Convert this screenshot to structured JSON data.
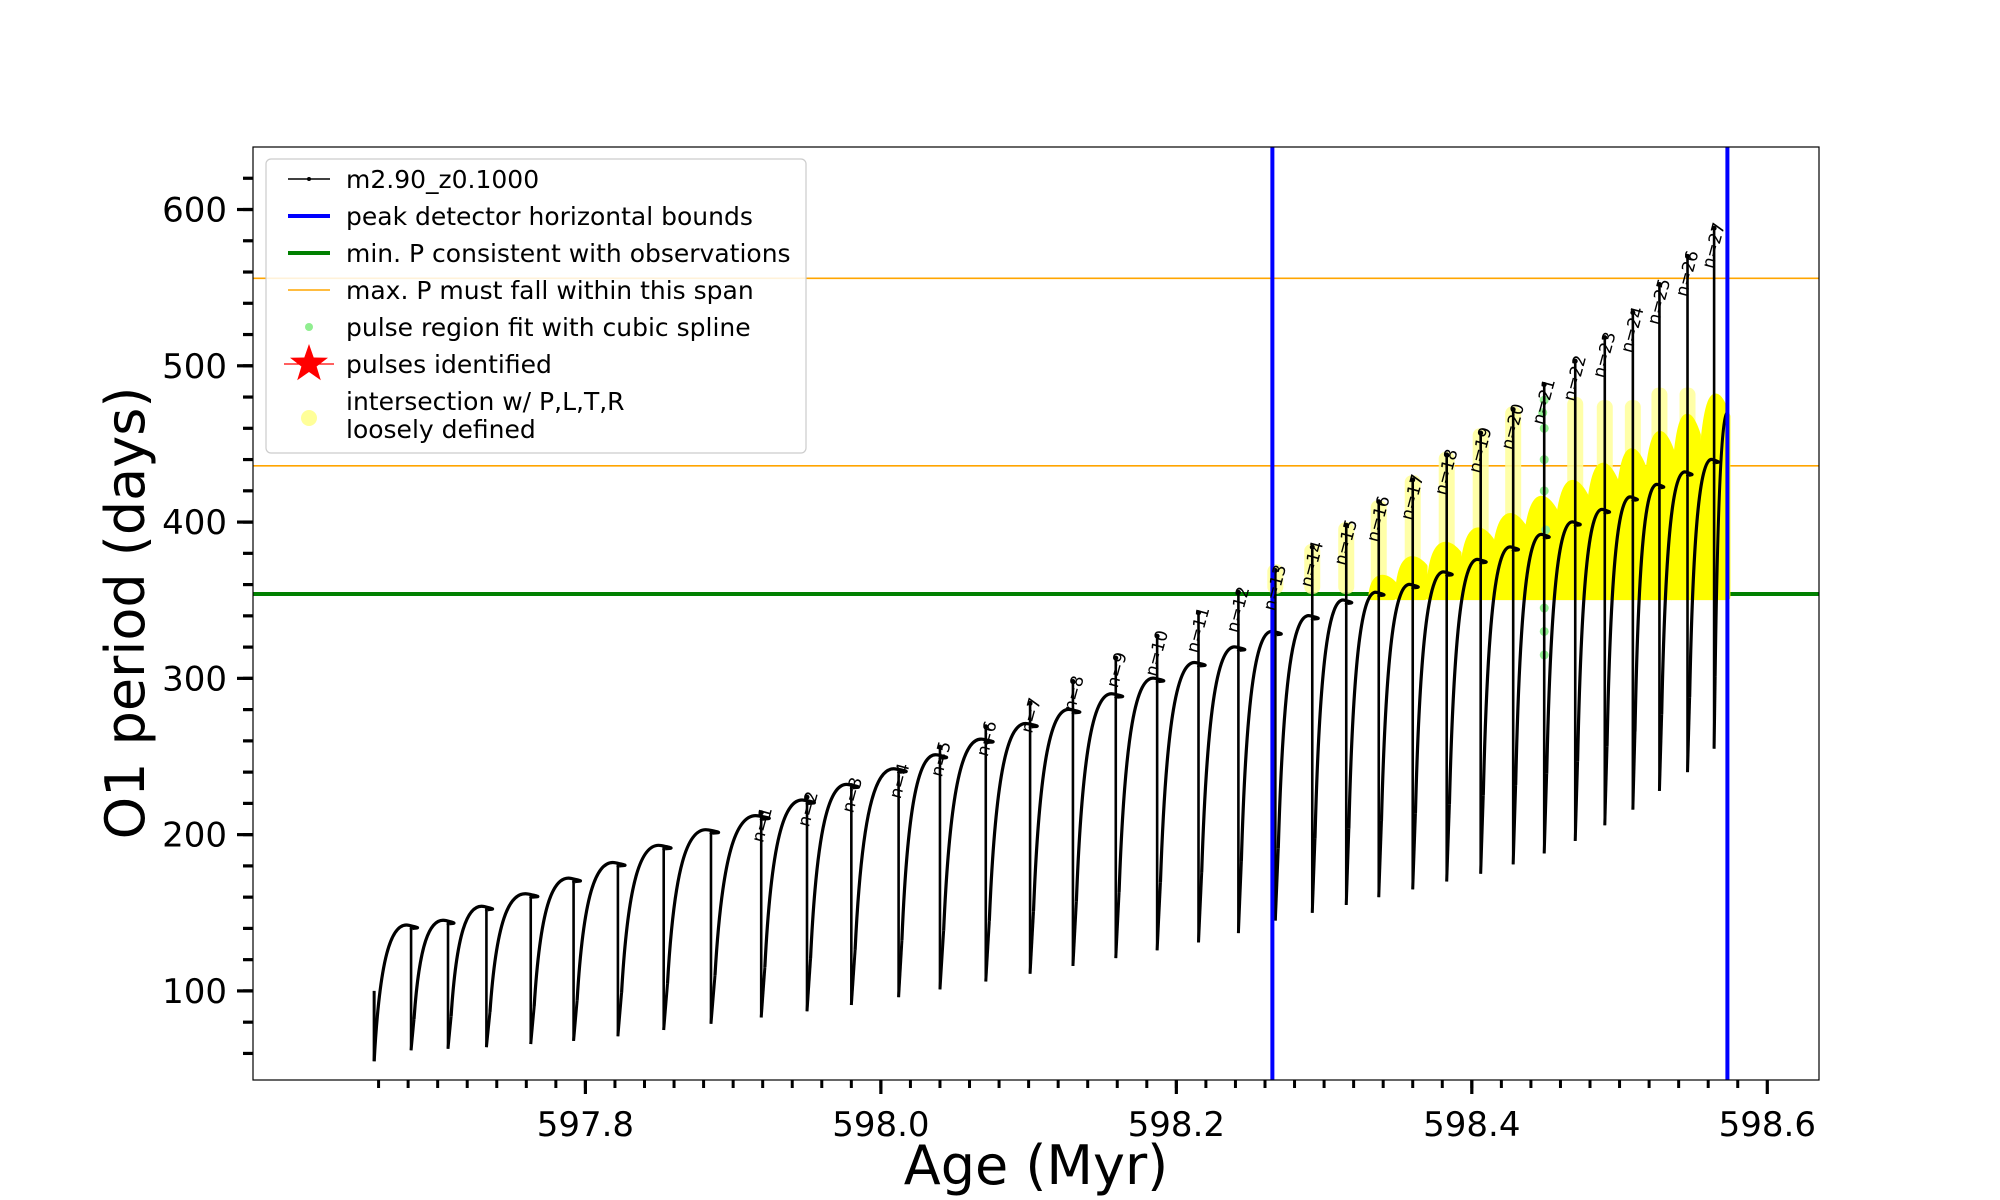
{
  "chart_data": {
    "type": "line",
    "xlabel": "Age (Myr)",
    "ylabel": "O1 period (days)",
    "xlim": [
      597.575,
      598.635
    ],
    "ylim": [
      43,
      640
    ],
    "x_ticks": [
      597.8,
      598.0,
      598.2,
      598.4,
      598.6
    ],
    "x_tick_labels": [
      "597.8",
      "598.0",
      "598.2",
      "598.4",
      "598.6"
    ],
    "x_minor_step": 0.02,
    "y_ticks": [
      100,
      200,
      300,
      400,
      500,
      600
    ],
    "y_tick_labels": [
      "100",
      "200",
      "300",
      "400",
      "500",
      "600"
    ],
    "y_minor_step": 20,
    "legend_position": "upper left",
    "legend": [
      {
        "label": "m2.90_z0.1000",
        "marker": "line-dot",
        "color": "#000000"
      },
      {
        "label": "peak detector horizontal bounds",
        "marker": "line",
        "color": "#0000ff"
      },
      {
        "label": "min. P consistent with observations",
        "marker": "line",
        "color": "#008000"
      },
      {
        "label": "max. P must fall within this span",
        "marker": "thin-line",
        "color": "#ffa500"
      },
      {
        "label": "pulse region fit with cubic spline",
        "marker": "dot",
        "color": "#90ee90"
      },
      {
        "label": "pulses identified",
        "marker": "star",
        "color": "#ff0000"
      },
      {
        "label": "intersection w/ P,L,T,R",
        "label_line2": "loosely defined",
        "marker": "circle",
        "color": "#ffff99"
      }
    ],
    "vertical_lines": [
      {
        "x": 598.265,
        "color": "#0000ff"
      },
      {
        "x": 598.573,
        "color": "#0000ff"
      }
    ],
    "horizontal_lines": [
      {
        "y": 354,
        "color": "#008000"
      },
      {
        "y": 436,
        "color": "#ffa500"
      },
      {
        "y": 556,
        "color": "#ffa500"
      }
    ],
    "series": [
      {
        "name": "m2.90_z0.1000",
        "color": "#000000",
        "style": "sawtooth-pulses",
        "start": {
          "x": 597.657,
          "y": 100,
          "dip": 55
        },
        "pulses": [
          {
            "x": 597.682,
            "peak": 142,
            "spike": 142,
            "min": 62,
            "label": ""
          },
          {
            "x": 597.707,
            "peak": 145,
            "spike": 145,
            "min": 63,
            "label": ""
          },
          {
            "x": 597.733,
            "peak": 154,
            "spike": 154,
            "min": 64,
            "label": ""
          },
          {
            "x": 597.763,
            "peak": 162,
            "spike": 162,
            "min": 66,
            "label": ""
          },
          {
            "x": 597.792,
            "peak": 172,
            "spike": 172,
            "min": 68,
            "label": ""
          },
          {
            "x": 597.822,
            "peak": 182,
            "spike": 182,
            "min": 71,
            "label": ""
          },
          {
            "x": 597.853,
            "peak": 193,
            "spike": 193,
            "min": 75,
            "label": ""
          },
          {
            "x": 597.885,
            "peak": 203,
            "spike": 203,
            "min": 79,
            "label": ""
          },
          {
            "x": 597.919,
            "peak": 212,
            "spike": 214,
            "min": 83,
            "label": "n=1"
          },
          {
            "x": 597.95,
            "peak": 222,
            "spike": 224,
            "min": 87,
            "label": "n=2"
          },
          {
            "x": 597.98,
            "peak": 232,
            "spike": 233,
            "min": 91,
            "label": "n=3"
          },
          {
            "x": 598.012,
            "peak": 242,
            "spike": 242,
            "min": 96,
            "label": "n=4"
          },
          {
            "x": 598.04,
            "peak": 251,
            "spike": 256,
            "min": 101,
            "label": "n=5"
          },
          {
            "x": 598.071,
            "peak": 261,
            "spike": 269,
            "min": 106,
            "label": "n=6"
          },
          {
            "x": 598.101,
            "peak": 271,
            "spike": 284,
            "min": 111,
            "label": "n=7"
          },
          {
            "x": 598.13,
            "peak": 280,
            "spike": 298,
            "min": 116,
            "label": "n=8"
          },
          {
            "x": 598.159,
            "peak": 290,
            "spike": 313,
            "min": 121,
            "label": "n=9"
          },
          {
            "x": 598.187,
            "peak": 300,
            "spike": 327,
            "min": 126,
            "label": "n=10"
          },
          {
            "x": 598.215,
            "peak": 310,
            "spike": 342,
            "min": 131,
            "label": "n=11"
          },
          {
            "x": 598.242,
            "peak": 320,
            "spike": 355,
            "min": 137,
            "label": "n=12"
          },
          {
            "x": 598.267,
            "peak": 330,
            "spike": 369,
            "min": 145,
            "label": "n=13"
          },
          {
            "x": 598.292,
            "peak": 340,
            "spike": 384,
            "min": 150,
            "label": "n=14"
          },
          {
            "x": 598.315,
            "peak": 350,
            "spike": 398,
            "min": 155,
            "label": "n=15"
          },
          {
            "x": 598.337,
            "peak": 355,
            "spike": 413,
            "min": 160,
            "label": "n=16"
          },
          {
            "x": 598.36,
            "peak": 360,
            "spike": 427,
            "min": 165,
            "label": "n=17"
          },
          {
            "x": 598.383,
            "peak": 368,
            "spike": 443,
            "min": 170,
            "label": "n=18"
          },
          {
            "x": 598.406,
            "peak": 376,
            "spike": 457,
            "min": 175,
            "label": "n=19"
          },
          {
            "x": 598.428,
            "peak": 384,
            "spike": 472,
            "min": 181,
            "label": "n=20"
          },
          {
            "x": 598.449,
            "peak": 392,
            "spike": 488,
            "min": 188,
            "label": "n=21"
          },
          {
            "x": 598.47,
            "peak": 400,
            "spike": 503,
            "min": 196,
            "label": "n=22"
          },
          {
            "x": 598.49,
            "peak": 408,
            "spike": 518,
            "min": 206,
            "label": "n=23"
          },
          {
            "x": 598.509,
            "peak": 416,
            "spike": 534,
            "min": 216,
            "label": "n=24"
          },
          {
            "x": 598.527,
            "peak": 424,
            "spike": 552,
            "min": 228,
            "label": "n=25"
          },
          {
            "x": 598.546,
            "peak": 432,
            "spike": 570,
            "min": 240,
            "label": "n=26"
          },
          {
            "x": 598.564,
            "peak": 440,
            "spike": 588,
            "min": 255,
            "label": "n=27"
          }
        ],
        "end": {
          "x": 598.573,
          "y": 470
        }
      },
      {
        "name": "intersection w/ P,L,T,R loosely defined",
        "color": "#ffff00",
        "style": "filled-arches",
        "arches": [
          {
            "x0": 598.332,
            "x1": 598.347,
            "top": 362
          },
          {
            "x0": 598.35,
            "x1": 598.368,
            "top": 375
          },
          {
            "x0": 598.371,
            "x1": 598.391,
            "top": 385
          },
          {
            "x0": 598.393,
            "x1": 598.413,
            "top": 395
          },
          {
            "x0": 598.414,
            "x1": 598.435,
            "top": 405
          },
          {
            "x0": 598.435,
            "x1": 598.456,
            "top": 417
          },
          {
            "x0": 598.456,
            "x1": 598.477,
            "top": 428
          },
          {
            "x0": 598.477,
            "x1": 598.497,
            "top": 440
          },
          {
            "x0": 598.497,
            "x1": 598.516,
            "top": 450
          },
          {
            "x0": 598.516,
            "x1": 598.535,
            "top": 462
          },
          {
            "x0": 598.535,
            "x1": 598.553,
            "top": 474
          },
          {
            "x0": 598.553,
            "x1": 598.573,
            "top": 488
          }
        ],
        "spike_glow": [
          {
            "x": 598.267,
            "top": 373
          },
          {
            "x": 598.292,
            "top": 386
          },
          {
            "x": 598.315,
            "top": 400
          },
          {
            "x": 598.337,
            "top": 414
          },
          {
            "x": 598.36,
            "top": 430
          },
          {
            "x": 598.383,
            "top": 445
          },
          {
            "x": 598.406,
            "top": 460
          },
          {
            "x": 598.428,
            "top": 474
          },
          {
            "x": 598.47,
            "top": 480
          },
          {
            "x": 598.49,
            "top": 478
          },
          {
            "x": 598.509,
            "top": 478
          },
          {
            "x": 598.527,
            "top": 486
          },
          {
            "x": 598.546,
            "top": 486
          }
        ]
      },
      {
        "name": "pulse region fit with cubic spline",
        "color": "#90ee90",
        "style": "dots",
        "points": [
          {
            "x": 598.449,
            "y": 315
          },
          {
            "x": 598.449,
            "y": 330
          },
          {
            "x": 598.449,
            "y": 345
          },
          {
            "x": 598.449,
            "y": 420
          },
          {
            "x": 598.449,
            "y": 440
          },
          {
            "x": 598.449,
            "y": 460
          },
          {
            "x": 598.449,
            "y": 478
          },
          {
            "x": 598.45,
            "y": 395
          },
          {
            "x": 598.448,
            "y": 470
          }
        ]
      }
    ]
  }
}
